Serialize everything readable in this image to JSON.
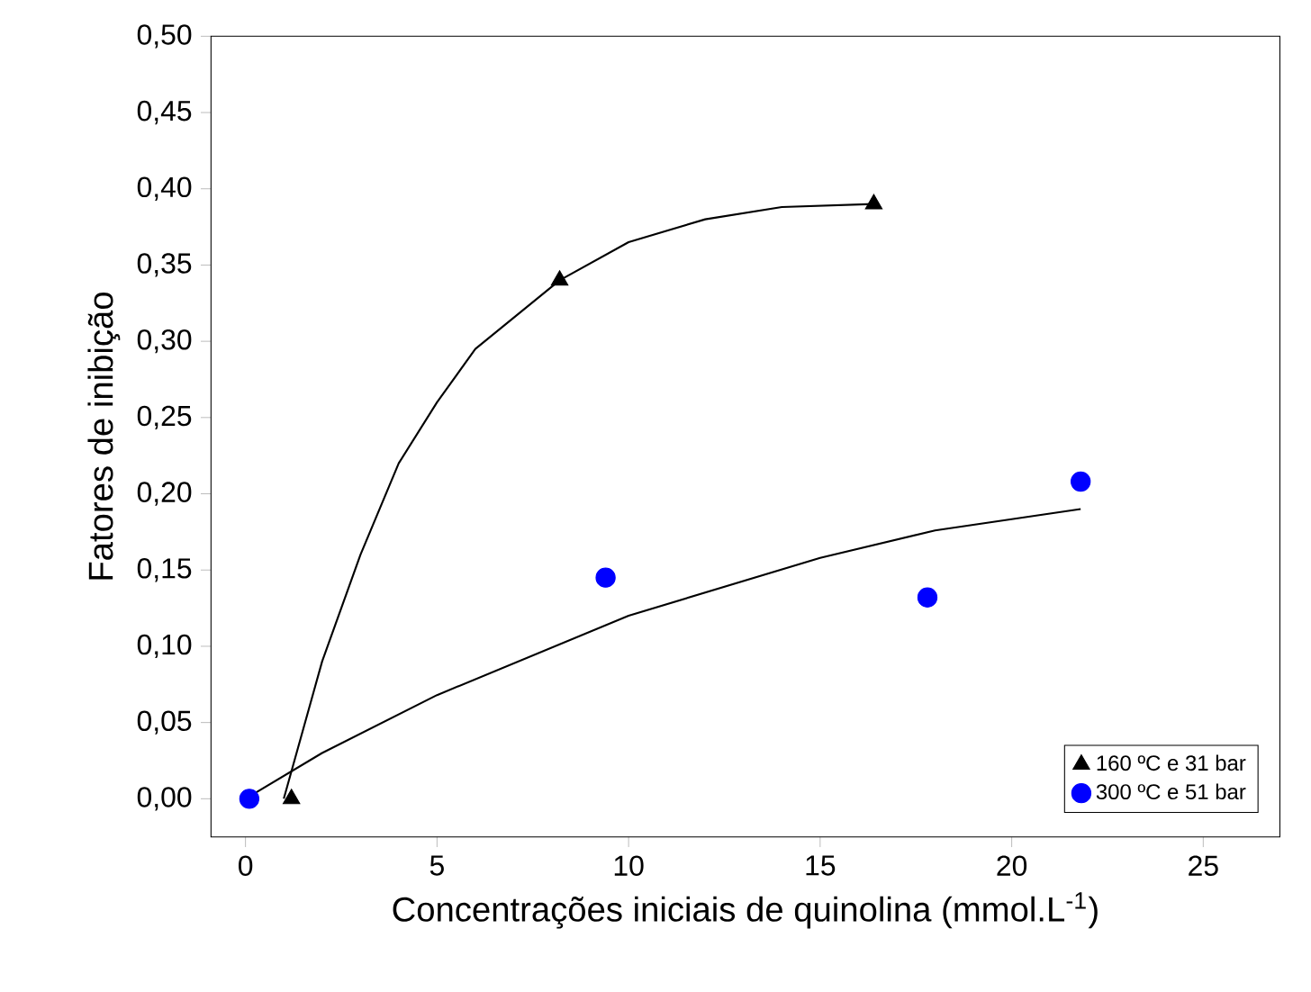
{
  "chart_data": {
    "type": "scatter",
    "xlabel": "Concentrações iniciais de quinolina (mmol.L$^{-1}$)",
    "ylabel": "Fatores de inibição",
    "xlim": [
      -0.9,
      27
    ],
    "ylim": [
      -0.025,
      0.5
    ],
    "xticks": [
      0,
      5,
      10,
      15,
      20,
      25
    ],
    "yticks": [
      {
        "value": 0,
        "label": "0,00"
      },
      {
        "value": 0.05,
        "label": "0,05"
      },
      {
        "value": 0.1,
        "label": "0,10"
      },
      {
        "value": 0.15,
        "label": "0,15"
      },
      {
        "value": 0.2,
        "label": "0,20"
      },
      {
        "value": 0.25,
        "label": "0,25"
      },
      {
        "value": 0.3,
        "label": "0,30"
      },
      {
        "value": 0.35,
        "label": "0,35"
      },
      {
        "value": 0.4,
        "label": "0,40"
      },
      {
        "value": 0.45,
        "label": "0,45"
      },
      {
        "value": 0.5,
        "label": "0,50"
      }
    ],
    "legend": "bottom right",
    "grid": false,
    "series": [
      {
        "name": "160 ºC e 31 bar",
        "marker": "triangle",
        "color": "#000000",
        "x": [
          1.2,
          8.2,
          16.4
        ],
        "values": [
          0,
          0.34,
          0.39
        ]
      },
      {
        "name": "300 ºC e 51 bar",
        "marker": "circle",
        "color": "#0000ff",
        "x": [
          0.1,
          9.4,
          17.8,
          21.8
        ],
        "values": [
          0,
          0.145,
          0.132,
          0.208
        ]
      },
      {
        "type": "line",
        "marker": "none",
        "color": "#000000",
        "x": [
          1.0,
          2,
          3,
          4,
          5,
          6,
          8.2,
          10,
          12,
          14,
          16.4
        ],
        "values": [
          0,
          0.09,
          0.16,
          0.22,
          0.26,
          0.295,
          0.34,
          0.365,
          0.38,
          0.388,
          0.39
        ]
      },
      {
        "type": "line",
        "marker": "none",
        "color": "#000000",
        "x": [
          0,
          2,
          5,
          10,
          15,
          18,
          21.8
        ],
        "values": [
          0,
          0.03,
          0.068,
          0.12,
          0.158,
          0.176,
          0.19
        ]
      }
    ]
  }
}
